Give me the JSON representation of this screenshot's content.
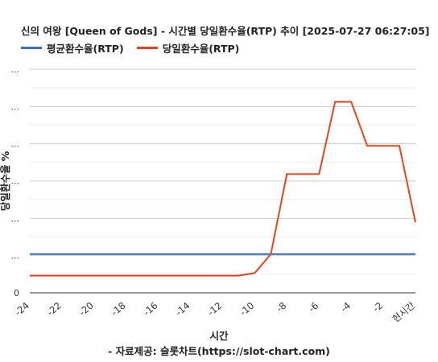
{
  "chart_data": {
    "type": "line",
    "title": "신의 여왕 [Queen of Gods] - 시간별 당일환수율(RTP) 추이 [2025-07-27 06:27:05]",
    "xlabel": "시간",
    "ylabel": "당일환수율 %",
    "source": "- 자료제공: 슬롯차트(https://slot-chart.com)",
    "x": [
      -24,
      -23,
      -22,
      -21,
      -20,
      -19,
      -18,
      -17,
      -16,
      -15,
      -14,
      -13,
      -12,
      -11,
      -10,
      -9,
      -8,
      -7,
      -6,
      -5,
      -4,
      -3,
      -2,
      -1,
      0
    ],
    "x_tick_labels": [
      "-24",
      "-22",
      "-20",
      "-18",
      "-16",
      "-14",
      "-12",
      "-10",
      "-8",
      "-6",
      "-4",
      "-2",
      "현시간"
    ],
    "y_tick_labels": [
      "0",
      "...",
      "...",
      "...",
      "...",
      "...",
      "..."
    ],
    "grid": true,
    "legend_position": "top-left",
    "series": [
      {
        "name": "평균환수율(RTP)",
        "color": "#3a6fc4",
        "values": [
          98.5,
          98.5,
          98.5,
          98.5,
          98.5,
          98.5,
          98.5,
          98.5,
          98.5,
          98.5,
          98.5,
          98.5,
          98.5,
          98.5,
          98.5,
          98.5,
          98.5,
          98.5,
          98.5,
          98.5,
          98.5,
          98.5,
          98.5,
          98.5,
          98.5
        ]
      },
      {
        "name": "당일환수율(RTP)",
        "color": "#e0461e",
        "values": [
          96.0,
          96.0,
          96.0,
          96.0,
          96.0,
          96.0,
          96.0,
          96.0,
          96.0,
          96.0,
          96.0,
          96.0,
          96.0,
          96.0,
          96.3,
          98.5,
          107.8,
          107.8,
          107.8,
          116.2,
          116.2,
          111.1,
          111.1,
          111.1,
          102.2
        ]
      }
    ]
  }
}
